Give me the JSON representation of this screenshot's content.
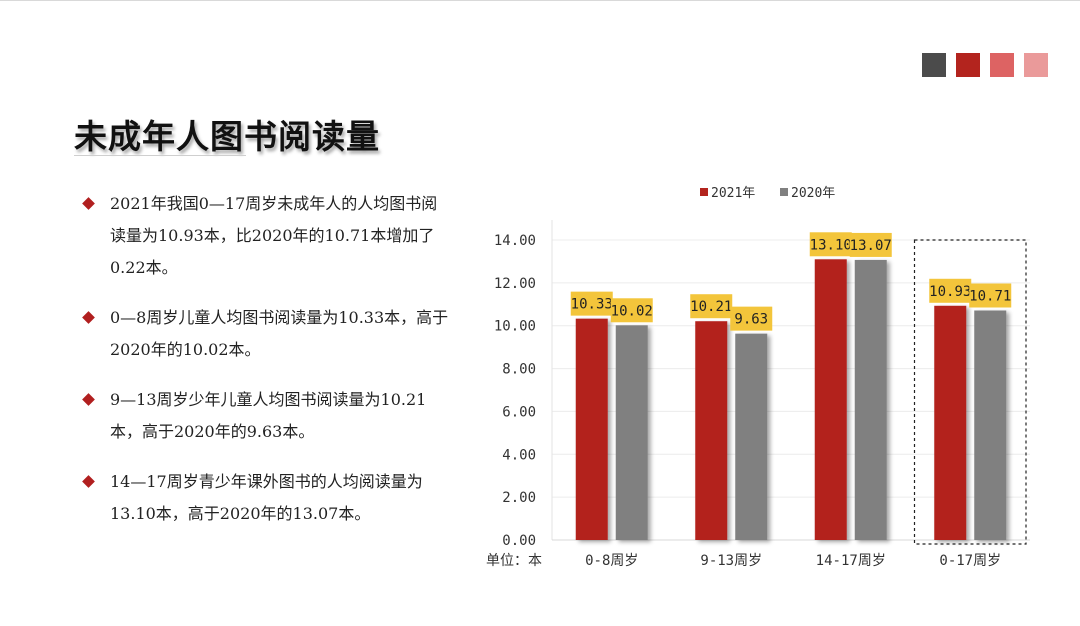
{
  "title": "未成年人图书阅读量",
  "colors": {
    "swatches": [
      "#4b4b4b",
      "#b3241e",
      "#dd6363",
      "#ea9a9a"
    ]
  },
  "bullets": [
    "2021年我国0—17周岁未成年人的人均图书阅读量为10.93本，比2020年的10.71本增加了0.22本。",
    "0—8周岁儿童人均图书阅读量为10.33本，高于2020年的10.02本。",
    "9—13周岁少年儿童人均图书阅读量为10.21本，高于2020年的9.63本。",
    "14—17周岁青少年课外图书的人均阅读量为13.10本，高于2020年的13.07本。"
  ],
  "chart_data": {
    "type": "bar",
    "categories": [
      "0-8周岁",
      "9-13周岁",
      "14-17周岁",
      "0-17周岁"
    ],
    "series": [
      {
        "name": "2021年",
        "color": "#b3241e",
        "values": [
          10.33,
          10.21,
          13.1,
          10.93
        ]
      },
      {
        "name": "2020年",
        "color": "#808080",
        "values": [
          10.02,
          9.63,
          13.07,
          10.71
        ]
      }
    ],
    "data_labels": [
      [
        "10.33",
        "10.21",
        "13.10",
        "10.93"
      ],
      [
        "10.02",
        "9.63",
        "13.07",
        "10.71"
      ]
    ],
    "ylim": [
      0,
      14
    ],
    "yticks": [
      "0.00",
      "2.00",
      "4.00",
      "6.00",
      "8.00",
      "10.00",
      "12.00",
      "14.00"
    ],
    "unit_label": "单位：本",
    "label_bg": "#f3c53b",
    "highlighted_category": "0-17周岁",
    "legend_position": "top-center",
    "grid": true
  }
}
